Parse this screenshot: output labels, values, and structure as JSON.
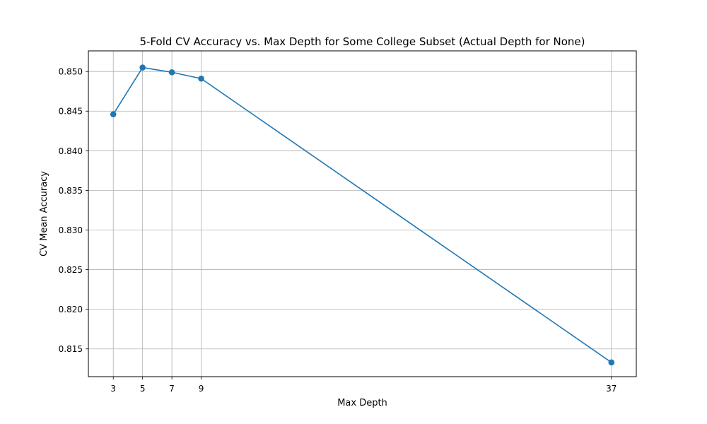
{
  "chart_data": {
    "type": "line",
    "title": "5-Fold CV Accuracy vs. Max Depth for Some College Subset (Actual Depth for None)",
    "xlabel": "Max Depth",
    "ylabel": "CV Mean Accuracy",
    "x": [
      3,
      5,
      7,
      9,
      37
    ],
    "x_ticks": [
      3,
      5,
      7,
      9,
      37
    ],
    "x_tick_labels": [
      "3",
      "5",
      "7",
      "9",
      "37"
    ],
    "y_ticks": [
      0.815,
      0.82,
      0.825,
      0.83,
      0.835,
      0.84,
      0.845,
      0.85
    ],
    "y_tick_labels": [
      "0.815",
      "0.820",
      "0.825",
      "0.830",
      "0.835",
      "0.840",
      "0.845",
      "0.850"
    ],
    "xlim": [
      1.3,
      38.7
    ],
    "ylim": [
      0.8115,
      0.8526
    ],
    "grid": true,
    "line_color": "#1f77b4",
    "series": [
      {
        "values": [
          0.8446,
          0.8505,
          0.8499,
          0.8491,
          0.8133
        ]
      }
    ]
  }
}
